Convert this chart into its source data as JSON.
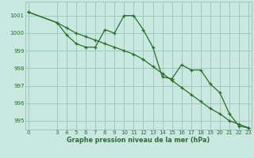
{
  "line1_x": [
    0,
    3,
    4,
    5,
    6,
    7,
    8,
    9,
    10,
    11,
    12,
    13,
    14,
    15,
    16,
    17,
    18,
    19,
    20,
    21,
    22,
    23
  ],
  "line1_y": [
    1001.2,
    1000.6,
    999.9,
    999.4,
    999.2,
    999.2,
    1000.2,
    1000.0,
    1001.0,
    1001.0,
    1000.2,
    999.2,
    997.5,
    997.4,
    998.2,
    997.9,
    997.9,
    997.1,
    996.6,
    995.4,
    994.7,
    994.6
  ],
  "line2_x": [
    0,
    3,
    4,
    5,
    6,
    7,
    8,
    9,
    10,
    11,
    12,
    13,
    14,
    15,
    16,
    17,
    18,
    19,
    20,
    21,
    22,
    23
  ],
  "line2_y": [
    1001.2,
    1000.6,
    1000.3,
    1000.0,
    999.8,
    999.6,
    999.4,
    999.2,
    999.0,
    998.8,
    998.5,
    998.1,
    997.7,
    997.3,
    996.9,
    996.5,
    996.1,
    995.7,
    995.4,
    995.0,
    994.8,
    994.6
  ],
  "line_color": "#2a6e2a",
  "bg_color": "#c8e8e0",
  "grid_color": "#a0c8c0",
  "ylim": [
    994.5,
    1001.8
  ],
  "xlim": [
    -0.3,
    23.3
  ],
  "yticks": [
    995,
    996,
    997,
    998,
    999,
    1000,
    1001
  ],
  "xticks": [
    0,
    3,
    4,
    5,
    6,
    7,
    8,
    9,
    10,
    11,
    12,
    13,
    14,
    15,
    16,
    17,
    18,
    19,
    20,
    21,
    22,
    23
  ],
  "xlabel": "Graphe pression niveau de la mer (hPa)",
  "marker": "+",
  "marker_size": 3.5,
  "marker_lw": 0.9,
  "line_width": 0.9,
  "tick_fontsize": 5.0,
  "xlabel_fontsize": 5.8,
  "xlabel_fontweight": "bold"
}
